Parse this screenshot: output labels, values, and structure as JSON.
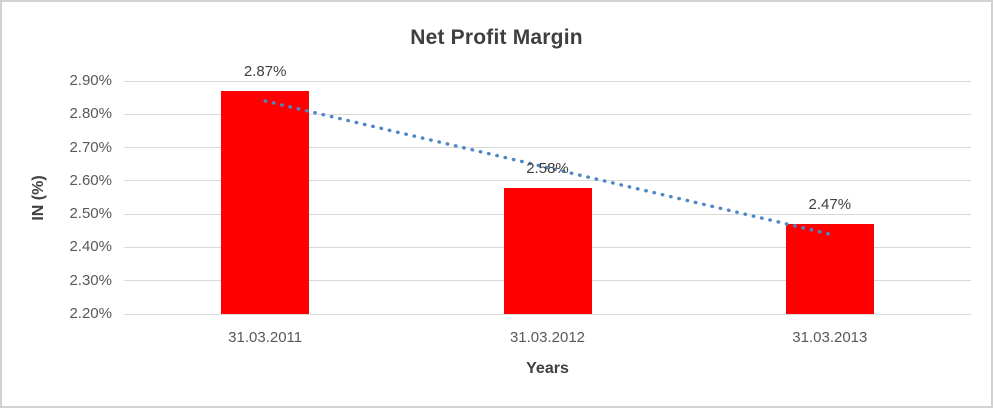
{
  "chart_data": {
    "type": "bar",
    "title": "Net Profit Margin",
    "xlabel": "Years",
    "ylabel": "IN (%)",
    "categories": [
      "31.03.2011",
      "31.03.2012",
      "31.03.2013"
    ],
    "values": [
      2.87,
      2.58,
      2.47
    ],
    "data_labels": [
      "2.87%",
      "2.58%",
      "2.47%"
    ],
    "ylim": [
      2.2,
      2.9
    ],
    "ytick_step": 0.1,
    "ytick_labels": [
      "2.20%",
      "2.30%",
      "2.40%",
      "2.50%",
      "2.60%",
      "2.70%",
      "2.80%",
      "2.90%"
    ],
    "grid": true,
    "legend": "none",
    "bar_color": "#ff0000",
    "trendline": {
      "type": "linear",
      "style": "dotted",
      "color": "#4f86c6",
      "start_value": 2.84,
      "end_value": 2.44
    }
  }
}
